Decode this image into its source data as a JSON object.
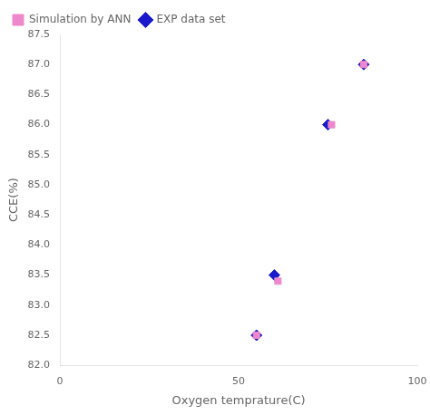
{
  "chart_data": {
    "type": "scatter",
    "xlabel": "Oxygen temprature(C)",
    "ylabel": "CCE(%)",
    "series": [
      {
        "name": "Simulation by ANN",
        "color": "#ee88cc",
        "marker": "square",
        "x": [
          55,
          61,
          76,
          85
        ],
        "values": [
          82.5,
          83.4,
          86.0,
          87.0
        ]
      },
      {
        "name": "EXP data set",
        "color": "#1a1acc",
        "marker": "diamond",
        "x": [
          55,
          60,
          75,
          85
        ],
        "values": [
          82.5,
          83.5,
          86.0,
          87.0
        ]
      }
    ],
    "xlim": [
      0,
      100
    ],
    "ylim": [
      82,
      87.5
    ],
    "xticks": [
      0,
      50,
      100
    ],
    "yticks": [
      {
        "value": 82,
        "label": "82.0"
      },
      82.5,
      {
        "value": 83,
        "label": "83.0"
      },
      83.5,
      {
        "value": 84,
        "label": "84.0"
      },
      84.5,
      {
        "value": 85,
        "label": "85.0"
      },
      85.5,
      {
        "value": 86,
        "label": "86.0"
      },
      86.5,
      {
        "value": 87,
        "label": "87.0"
      },
      87.5
    ],
    "grid": false,
    "legend": "upper left"
  }
}
